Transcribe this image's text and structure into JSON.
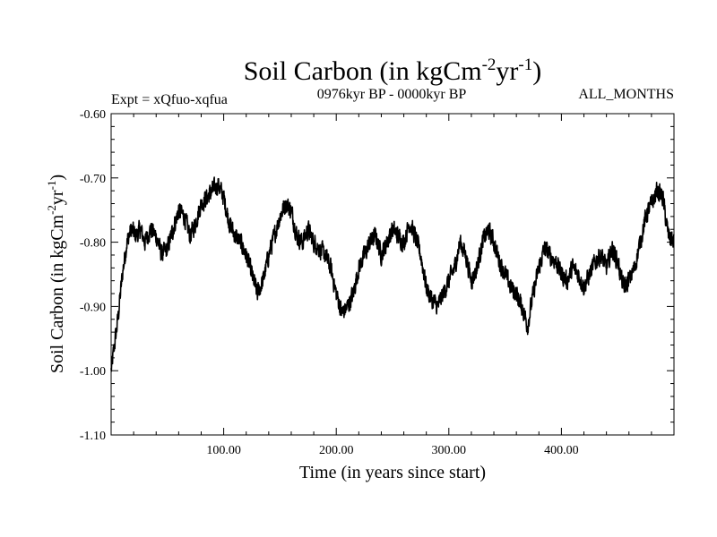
{
  "chart_data": {
    "type": "line",
    "title": {
      "main": "Soil Carbon (in kgCm",
      "sup1": "-2",
      "mid": "yr",
      "sup2": "-1",
      "end": ")"
    },
    "subtitle_left": "Expt = xQfuo-xqfua",
    "subtitle_center": "0976kyr BP - 0000kyr BP",
    "subtitle_right": "ALL_MONTHS",
    "xlabel": "Time (in years since start)",
    "ylabel": {
      "main": "Soil Carbon (in kgCm",
      "sup1": "-2",
      "mid": "yr",
      "sup2": "-1",
      "end": ")"
    },
    "xlim": [
      0,
      500
    ],
    "ylim": [
      -1.1,
      -0.6
    ],
    "x_tick_labels": [
      "100.00",
      "200.00",
      "300.00",
      "400.00"
    ],
    "x_tick_values": [
      100,
      200,
      300,
      400
    ],
    "y_tick_labels": [
      "-0.60",
      "-0.70",
      "-0.80",
      "-0.90",
      "-1.00",
      "-1.10"
    ],
    "y_tick_values": [
      -0.6,
      -0.7,
      -0.8,
      -0.9,
      -1.0,
      -1.1
    ],
    "series": [
      {
        "name": "Soil Carbon",
        "color": "#000000",
        "x": [
          0,
          3,
          6,
          10,
          14,
          18,
          22,
          26,
          30,
          35,
          40,
          45,
          50,
          55,
          60,
          65,
          70,
          75,
          80,
          85,
          90,
          95,
          100,
          105,
          110,
          115,
          120,
          125,
          130,
          135,
          140,
          145,
          150,
          155,
          160,
          165,
          170,
          175,
          180,
          185,
          190,
          195,
          200,
          205,
          210,
          215,
          220,
          225,
          230,
          235,
          240,
          245,
          250,
          255,
          260,
          265,
          270,
          275,
          280,
          285,
          290,
          295,
          300,
          305,
          310,
          315,
          320,
          325,
          330,
          335,
          340,
          345,
          350,
          355,
          360,
          365,
          370,
          375,
          380,
          385,
          390,
          395,
          400,
          405,
          410,
          415,
          420,
          425,
          430,
          435,
          440,
          445,
          450,
          455,
          460,
          465,
          470,
          475,
          480,
          485,
          490,
          495,
          500
        ],
        "y": [
          -1.0,
          -0.96,
          -0.92,
          -0.85,
          -0.8,
          -0.78,
          -0.79,
          -0.78,
          -0.8,
          -0.78,
          -0.79,
          -0.82,
          -0.81,
          -0.78,
          -0.75,
          -0.76,
          -0.79,
          -0.77,
          -0.74,
          -0.73,
          -0.72,
          -0.71,
          -0.73,
          -0.77,
          -0.79,
          -0.8,
          -0.82,
          -0.85,
          -0.88,
          -0.86,
          -0.82,
          -0.79,
          -0.76,
          -0.74,
          -0.75,
          -0.79,
          -0.8,
          -0.78,
          -0.8,
          -0.81,
          -0.82,
          -0.84,
          -0.88,
          -0.91,
          -0.9,
          -0.88,
          -0.84,
          -0.82,
          -0.8,
          -0.79,
          -0.82,
          -0.8,
          -0.78,
          -0.79,
          -0.8,
          -0.77,
          -0.79,
          -0.82,
          -0.87,
          -0.89,
          -0.9,
          -0.88,
          -0.86,
          -0.84,
          -0.8,
          -0.82,
          -0.86,
          -0.84,
          -0.8,
          -0.78,
          -0.8,
          -0.83,
          -0.85,
          -0.87,
          -0.88,
          -0.9,
          -0.93,
          -0.88,
          -0.84,
          -0.81,
          -0.82,
          -0.83,
          -0.85,
          -0.86,
          -0.84,
          -0.85,
          -0.87,
          -0.85,
          -0.83,
          -0.82,
          -0.84,
          -0.81,
          -0.83,
          -0.87,
          -0.86,
          -0.84,
          -0.8,
          -0.76,
          -0.74,
          -0.72,
          -0.73,
          -0.79,
          -0.8
        ]
      }
    ]
  }
}
